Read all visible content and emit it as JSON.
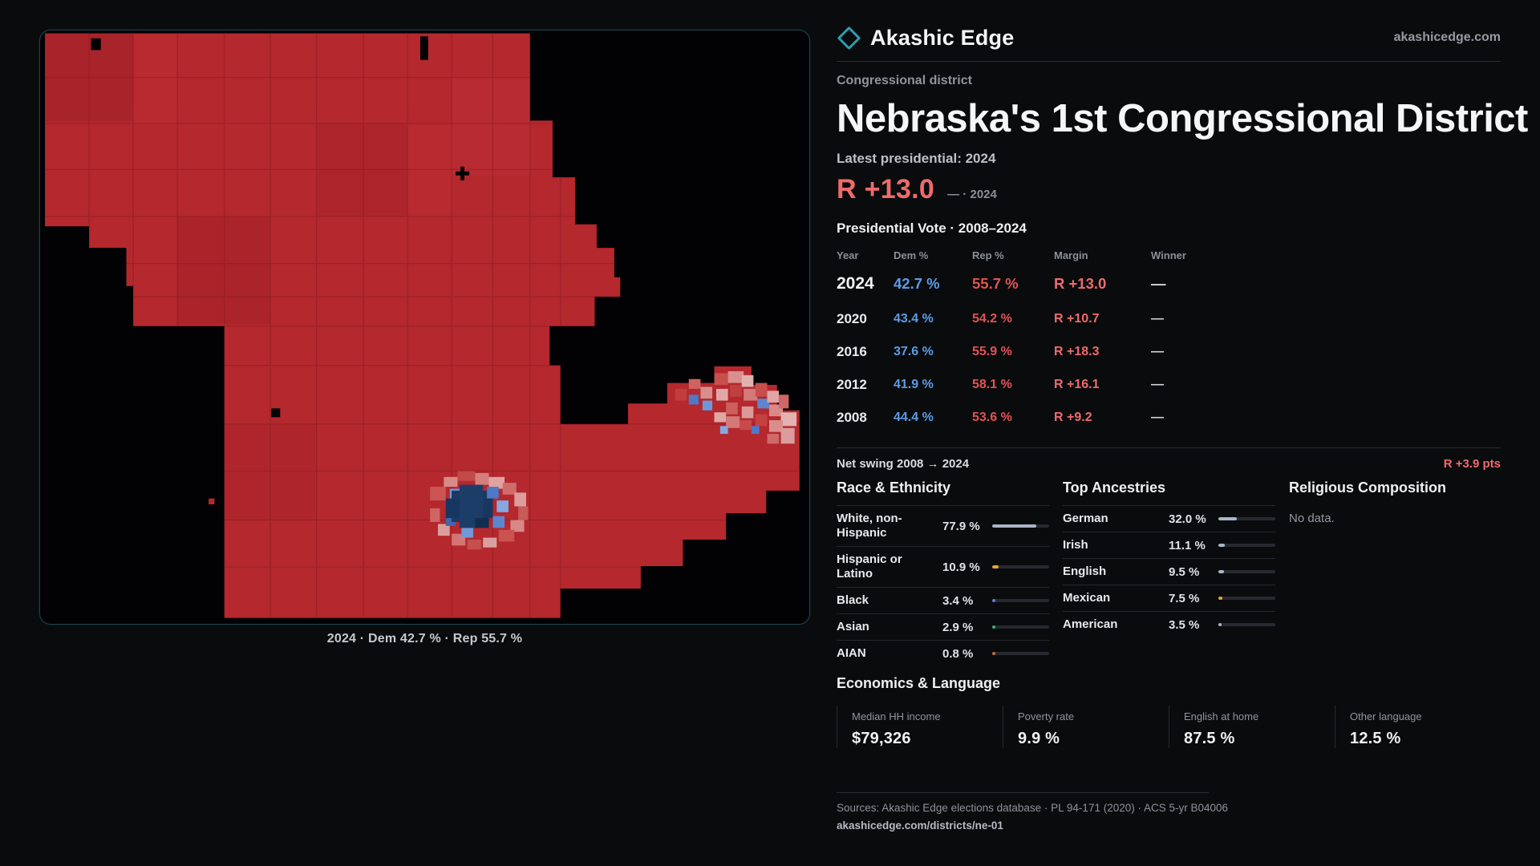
{
  "colors": {
    "demBlue": "#5b9ce6",
    "repRed": "#e25353",
    "marginRed": "#ee6b6b",
    "teal": "#2f9cb0",
    "mapRed": "#b4282e"
  },
  "brand": {
    "name": "Akashic Edge",
    "site": "akashicedge.com"
  },
  "header": {
    "kicker": "Congressional district",
    "title": "Nebraska's 1st Congressional District",
    "latest_label": "Latest presidential: 2024",
    "headline_margin": "R +13.0",
    "headline_note": "— · 2024"
  },
  "map": {
    "caption": "2024 · Dem 42.7 % · Rep 55.7 %"
  },
  "vote_table": {
    "title": "Presidential Vote · 2008–2024",
    "columns": [
      "Year",
      "Dem %",
      "Rep %",
      "Margin",
      "Winner"
    ],
    "rows": [
      {
        "year": "2024",
        "dem": "42.7 %",
        "rep": "55.7 %",
        "margin": "R +13.0",
        "winner": "—"
      },
      {
        "year": "2020",
        "dem": "43.4 %",
        "rep": "54.2 %",
        "margin": "R +10.7",
        "winner": "—"
      },
      {
        "year": "2016",
        "dem": "37.6 %",
        "rep": "55.9 %",
        "margin": "R +18.3",
        "winner": "—"
      },
      {
        "year": "2012",
        "dem": "41.9 %",
        "rep": "58.1 %",
        "margin": "R +16.1",
        "winner": "—"
      },
      {
        "year": "2008",
        "dem": "44.4 %",
        "rep": "53.6 %",
        "margin": "R +9.2",
        "winner": "—"
      }
    ]
  },
  "net_swing": {
    "label": "Net swing 2008 → 2024",
    "value": "R +3.9 pts"
  },
  "race": {
    "title": "Race & Ethnicity",
    "rows": [
      {
        "label": "White, non-Hispanic",
        "value": "77.9 %",
        "pct": 77.9,
        "color": "#a9b6c6"
      },
      {
        "label": "Hispanic or Latino",
        "value": "10.9 %",
        "pct": 10.9,
        "color": "#e2a43c"
      },
      {
        "label": "Black",
        "value": "3.4 %",
        "pct": 3.4,
        "color": "#6b7ae0"
      },
      {
        "label": "Asian",
        "value": "2.9 %",
        "pct": 2.9,
        "color": "#3fae7a"
      },
      {
        "label": "AIAN",
        "value": "0.8 %",
        "pct": 0.8,
        "color": "#cf6a3a"
      }
    ]
  },
  "ancestries": {
    "title": "Top Ancestries",
    "rows": [
      {
        "label": "German",
        "value": "32.0 %",
        "pct": 32.0,
        "color": "#a9b6c6"
      },
      {
        "label": "Irish",
        "value": "11.1 %",
        "pct": 11.1,
        "color": "#a9b6c6"
      },
      {
        "label": "English",
        "value": "9.5 %",
        "pct": 9.5,
        "color": "#a9b6c6"
      },
      {
        "label": "Mexican",
        "value": "7.5 %",
        "pct": 7.5,
        "color": "#e2a43c"
      },
      {
        "label": "American",
        "value": "3.5 %",
        "pct": 3.5,
        "color": "#a9b6c6"
      }
    ]
  },
  "religion": {
    "title": "Religious Composition",
    "empty": "No data."
  },
  "economics": {
    "title": "Economics & Language",
    "stats": [
      {
        "label": "Median HH income",
        "value": "$79,326"
      },
      {
        "label": "Poverty rate",
        "value": "9.9 %"
      },
      {
        "label": "English at home",
        "value": "87.5 %"
      },
      {
        "label": "Other language",
        "value": "12.5 %"
      }
    ]
  },
  "footer": {
    "sources": "Sources: Akashic Edge elections database · PL 94-171 (2020) · ACS 5-yr B04006",
    "permalink": "akashicedge.com/districts/ne-01"
  }
}
